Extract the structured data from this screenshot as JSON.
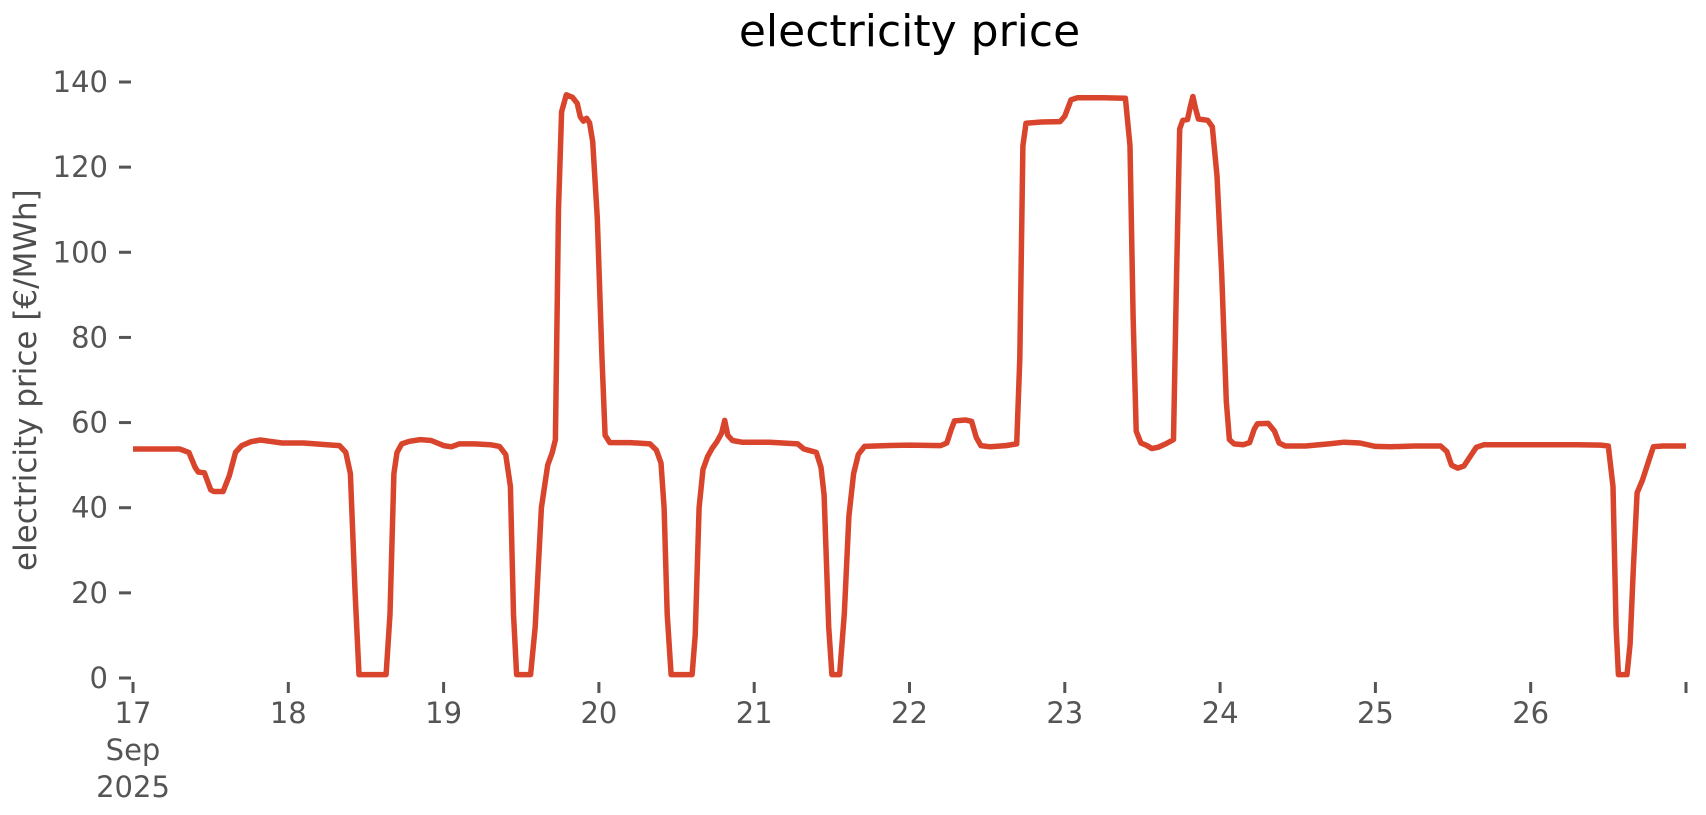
{
  "chart_data": {
    "type": "line",
    "title": "electricity price",
    "ylabel": "electricity price [€/MWh]",
    "xlabel": "",
    "grid": false,
    "legend": false,
    "x_axis": {
      "unit": "date",
      "month": "Sep",
      "year": "2025",
      "range_days": [
        17,
        27
      ],
      "ticks": [
        {
          "day": 17,
          "label": "17",
          "sublabels": [
            "Sep",
            "2025"
          ]
        },
        {
          "day": 18,
          "label": "18"
        },
        {
          "day": 19,
          "label": "19"
        },
        {
          "day": 20,
          "label": "20"
        },
        {
          "day": 21,
          "label": "21"
        },
        {
          "day": 22,
          "label": "22"
        },
        {
          "day": 23,
          "label": "23"
        },
        {
          "day": 24,
          "label": "24"
        },
        {
          "day": 25,
          "label": "25"
        },
        {
          "day": 26,
          "label": "26"
        },
        {
          "day": 27,
          "label": ""
        }
      ]
    },
    "y_axis": {
      "unit": "€/MWh",
      "ticks": [
        0,
        20,
        40,
        60,
        80,
        100,
        120,
        140
      ],
      "range": [
        0,
        140
      ]
    },
    "series": [
      {
        "name": "electricity price",
        "color": "#d9452c",
        "points": [
          [
            17.0,
            53.8
          ],
          [
            17.3,
            53.8
          ],
          [
            17.36,
            53.0
          ],
          [
            17.4,
            49.5
          ],
          [
            17.42,
            48.4
          ],
          [
            17.46,
            48.2
          ],
          [
            17.5,
            44.2
          ],
          [
            17.52,
            43.8
          ],
          [
            17.58,
            43.8
          ],
          [
            17.62,
            47.5
          ],
          [
            17.66,
            53.0
          ],
          [
            17.7,
            54.6
          ],
          [
            17.76,
            55.5
          ],
          [
            17.82,
            55.9
          ],
          [
            17.88,
            55.6
          ],
          [
            17.96,
            55.2
          ],
          [
            18.1,
            55.2
          ],
          [
            18.25,
            54.8
          ],
          [
            18.33,
            54.6
          ],
          [
            18.37,
            53.0
          ],
          [
            18.4,
            48.0
          ],
          [
            18.43,
            20.0
          ],
          [
            18.455,
            0.8
          ],
          [
            18.63,
            0.8
          ],
          [
            18.655,
            15.0
          ],
          [
            18.68,
            48.0
          ],
          [
            18.7,
            53.0
          ],
          [
            18.73,
            55.0
          ],
          [
            18.78,
            55.6
          ],
          [
            18.85,
            56.0
          ],
          [
            18.92,
            55.8
          ],
          [
            19.0,
            54.6
          ],
          [
            19.05,
            54.3
          ],
          [
            19.1,
            55.0
          ],
          [
            19.2,
            55.0
          ],
          [
            19.3,
            54.8
          ],
          [
            19.36,
            54.4
          ],
          [
            19.4,
            52.5
          ],
          [
            19.43,
            45.0
          ],
          [
            19.45,
            15.0
          ],
          [
            19.47,
            0.8
          ],
          [
            19.56,
            0.8
          ],
          [
            19.59,
            12.0
          ],
          [
            19.63,
            40.0
          ],
          [
            19.67,
            50.0
          ],
          [
            19.7,
            53.0
          ],
          [
            19.72,
            56.0
          ],
          [
            19.74,
            110.0
          ],
          [
            19.76,
            133.0
          ],
          [
            19.79,
            137.0
          ],
          [
            19.83,
            136.4
          ],
          [
            19.86,
            135.0
          ],
          [
            19.88,
            131.8
          ],
          [
            19.9,
            130.8
          ],
          [
            19.92,
            131.5
          ],
          [
            19.94,
            130.4
          ],
          [
            19.96,
            126.0
          ],
          [
            19.99,
            108.0
          ],
          [
            20.02,
            75.0
          ],
          [
            20.04,
            57.0
          ],
          [
            20.07,
            55.3
          ],
          [
            20.2,
            55.3
          ],
          [
            20.33,
            55.0
          ],
          [
            20.37,
            53.5
          ],
          [
            20.4,
            50.5
          ],
          [
            20.42,
            40.0
          ],
          [
            20.44,
            15.0
          ],
          [
            20.465,
            0.8
          ],
          [
            20.6,
            0.8
          ],
          [
            20.62,
            10.0
          ],
          [
            20.645,
            40.0
          ],
          [
            20.67,
            49.0
          ],
          [
            20.7,
            52.0
          ],
          [
            20.73,
            54.0
          ],
          [
            20.76,
            55.5
          ],
          [
            20.79,
            57.5
          ],
          [
            20.81,
            60.5
          ],
          [
            20.83,
            57.0
          ],
          [
            20.86,
            55.8
          ],
          [
            20.92,
            55.4
          ],
          [
            21.1,
            55.4
          ],
          [
            21.28,
            55.0
          ],
          [
            21.32,
            53.8
          ],
          [
            21.36,
            53.4
          ],
          [
            21.4,
            53.0
          ],
          [
            21.43,
            49.5
          ],
          [
            21.45,
            43.0
          ],
          [
            21.48,
            12.0
          ],
          [
            21.5,
            0.8
          ],
          [
            21.55,
            0.8
          ],
          [
            21.58,
            15.0
          ],
          [
            21.61,
            38.0
          ],
          [
            21.64,
            48.0
          ],
          [
            21.67,
            52.5
          ],
          [
            21.71,
            54.4
          ],
          [
            21.85,
            54.6
          ],
          [
            22.0,
            54.7
          ],
          [
            22.2,
            54.6
          ],
          [
            22.24,
            55.2
          ],
          [
            22.27,
            58.5
          ],
          [
            22.29,
            60.4
          ],
          [
            22.36,
            60.6
          ],
          [
            22.4,
            60.3
          ],
          [
            22.43,
            56.5
          ],
          [
            22.46,
            54.6
          ],
          [
            22.52,
            54.3
          ],
          [
            22.62,
            54.6
          ],
          [
            22.69,
            55.0
          ],
          [
            22.71,
            75.0
          ],
          [
            22.73,
            125.0
          ],
          [
            22.75,
            130.3
          ],
          [
            22.85,
            130.6
          ],
          [
            22.97,
            130.7
          ],
          [
            23.0,
            132.0
          ],
          [
            23.04,
            135.8
          ],
          [
            23.08,
            136.3
          ],
          [
            23.25,
            136.3
          ],
          [
            23.39,
            136.2
          ],
          [
            23.42,
            125.0
          ],
          [
            23.44,
            85.0
          ],
          [
            23.46,
            58.0
          ],
          [
            23.49,
            55.2
          ],
          [
            23.53,
            54.6
          ],
          [
            23.56,
            53.9
          ],
          [
            23.6,
            54.2
          ],
          [
            23.65,
            55.0
          ],
          [
            23.7,
            56.0
          ],
          [
            23.72,
            95.0
          ],
          [
            23.74,
            129.0
          ],
          [
            23.76,
            131.0
          ],
          [
            23.79,
            131.2
          ],
          [
            23.81,
            134.5
          ],
          [
            23.825,
            136.6
          ],
          [
            23.84,
            134.0
          ],
          [
            23.86,
            131.3
          ],
          [
            23.92,
            131.0
          ],
          [
            23.95,
            129.5
          ],
          [
            23.98,
            118.0
          ],
          [
            24.01,
            95.0
          ],
          [
            24.04,
            65.0
          ],
          [
            24.06,
            56.0
          ],
          [
            24.09,
            55.0
          ],
          [
            24.15,
            54.8
          ],
          [
            24.19,
            55.3
          ],
          [
            24.22,
            58.5
          ],
          [
            24.24,
            59.7
          ],
          [
            24.31,
            59.8
          ],
          [
            24.35,
            58.0
          ],
          [
            24.38,
            55.2
          ],
          [
            24.42,
            54.5
          ],
          [
            24.55,
            54.5
          ],
          [
            24.7,
            55.0
          ],
          [
            24.8,
            55.4
          ],
          [
            24.9,
            55.2
          ],
          [
            25.0,
            54.4
          ],
          [
            25.1,
            54.3
          ],
          [
            25.25,
            54.5
          ],
          [
            25.42,
            54.5
          ],
          [
            25.46,
            53.2
          ],
          [
            25.49,
            50.0
          ],
          [
            25.53,
            49.3
          ],
          [
            25.57,
            49.8
          ],
          [
            25.61,
            52.0
          ],
          [
            25.65,
            54.2
          ],
          [
            25.7,
            54.8
          ],
          [
            25.9,
            54.8
          ],
          [
            26.1,
            54.8
          ],
          [
            26.3,
            54.8
          ],
          [
            26.45,
            54.7
          ],
          [
            26.5,
            54.5
          ],
          [
            26.53,
            45.0
          ],
          [
            26.55,
            12.0
          ],
          [
            26.565,
            0.8
          ],
          [
            26.62,
            0.8
          ],
          [
            26.64,
            8.0
          ],
          [
            26.66,
            25.0
          ],
          [
            26.685,
            43.5
          ],
          [
            26.72,
            46.5
          ],
          [
            26.76,
            51.0
          ],
          [
            26.79,
            54.3
          ],
          [
            26.85,
            54.5
          ],
          [
            27.0,
            54.5
          ]
        ]
      }
    ]
  },
  "colors": {
    "line": "#d9452c",
    "tick_label": "#555555",
    "axis_label": "#4d4d4d",
    "title": "#000000",
    "background": "#ffffff"
  }
}
